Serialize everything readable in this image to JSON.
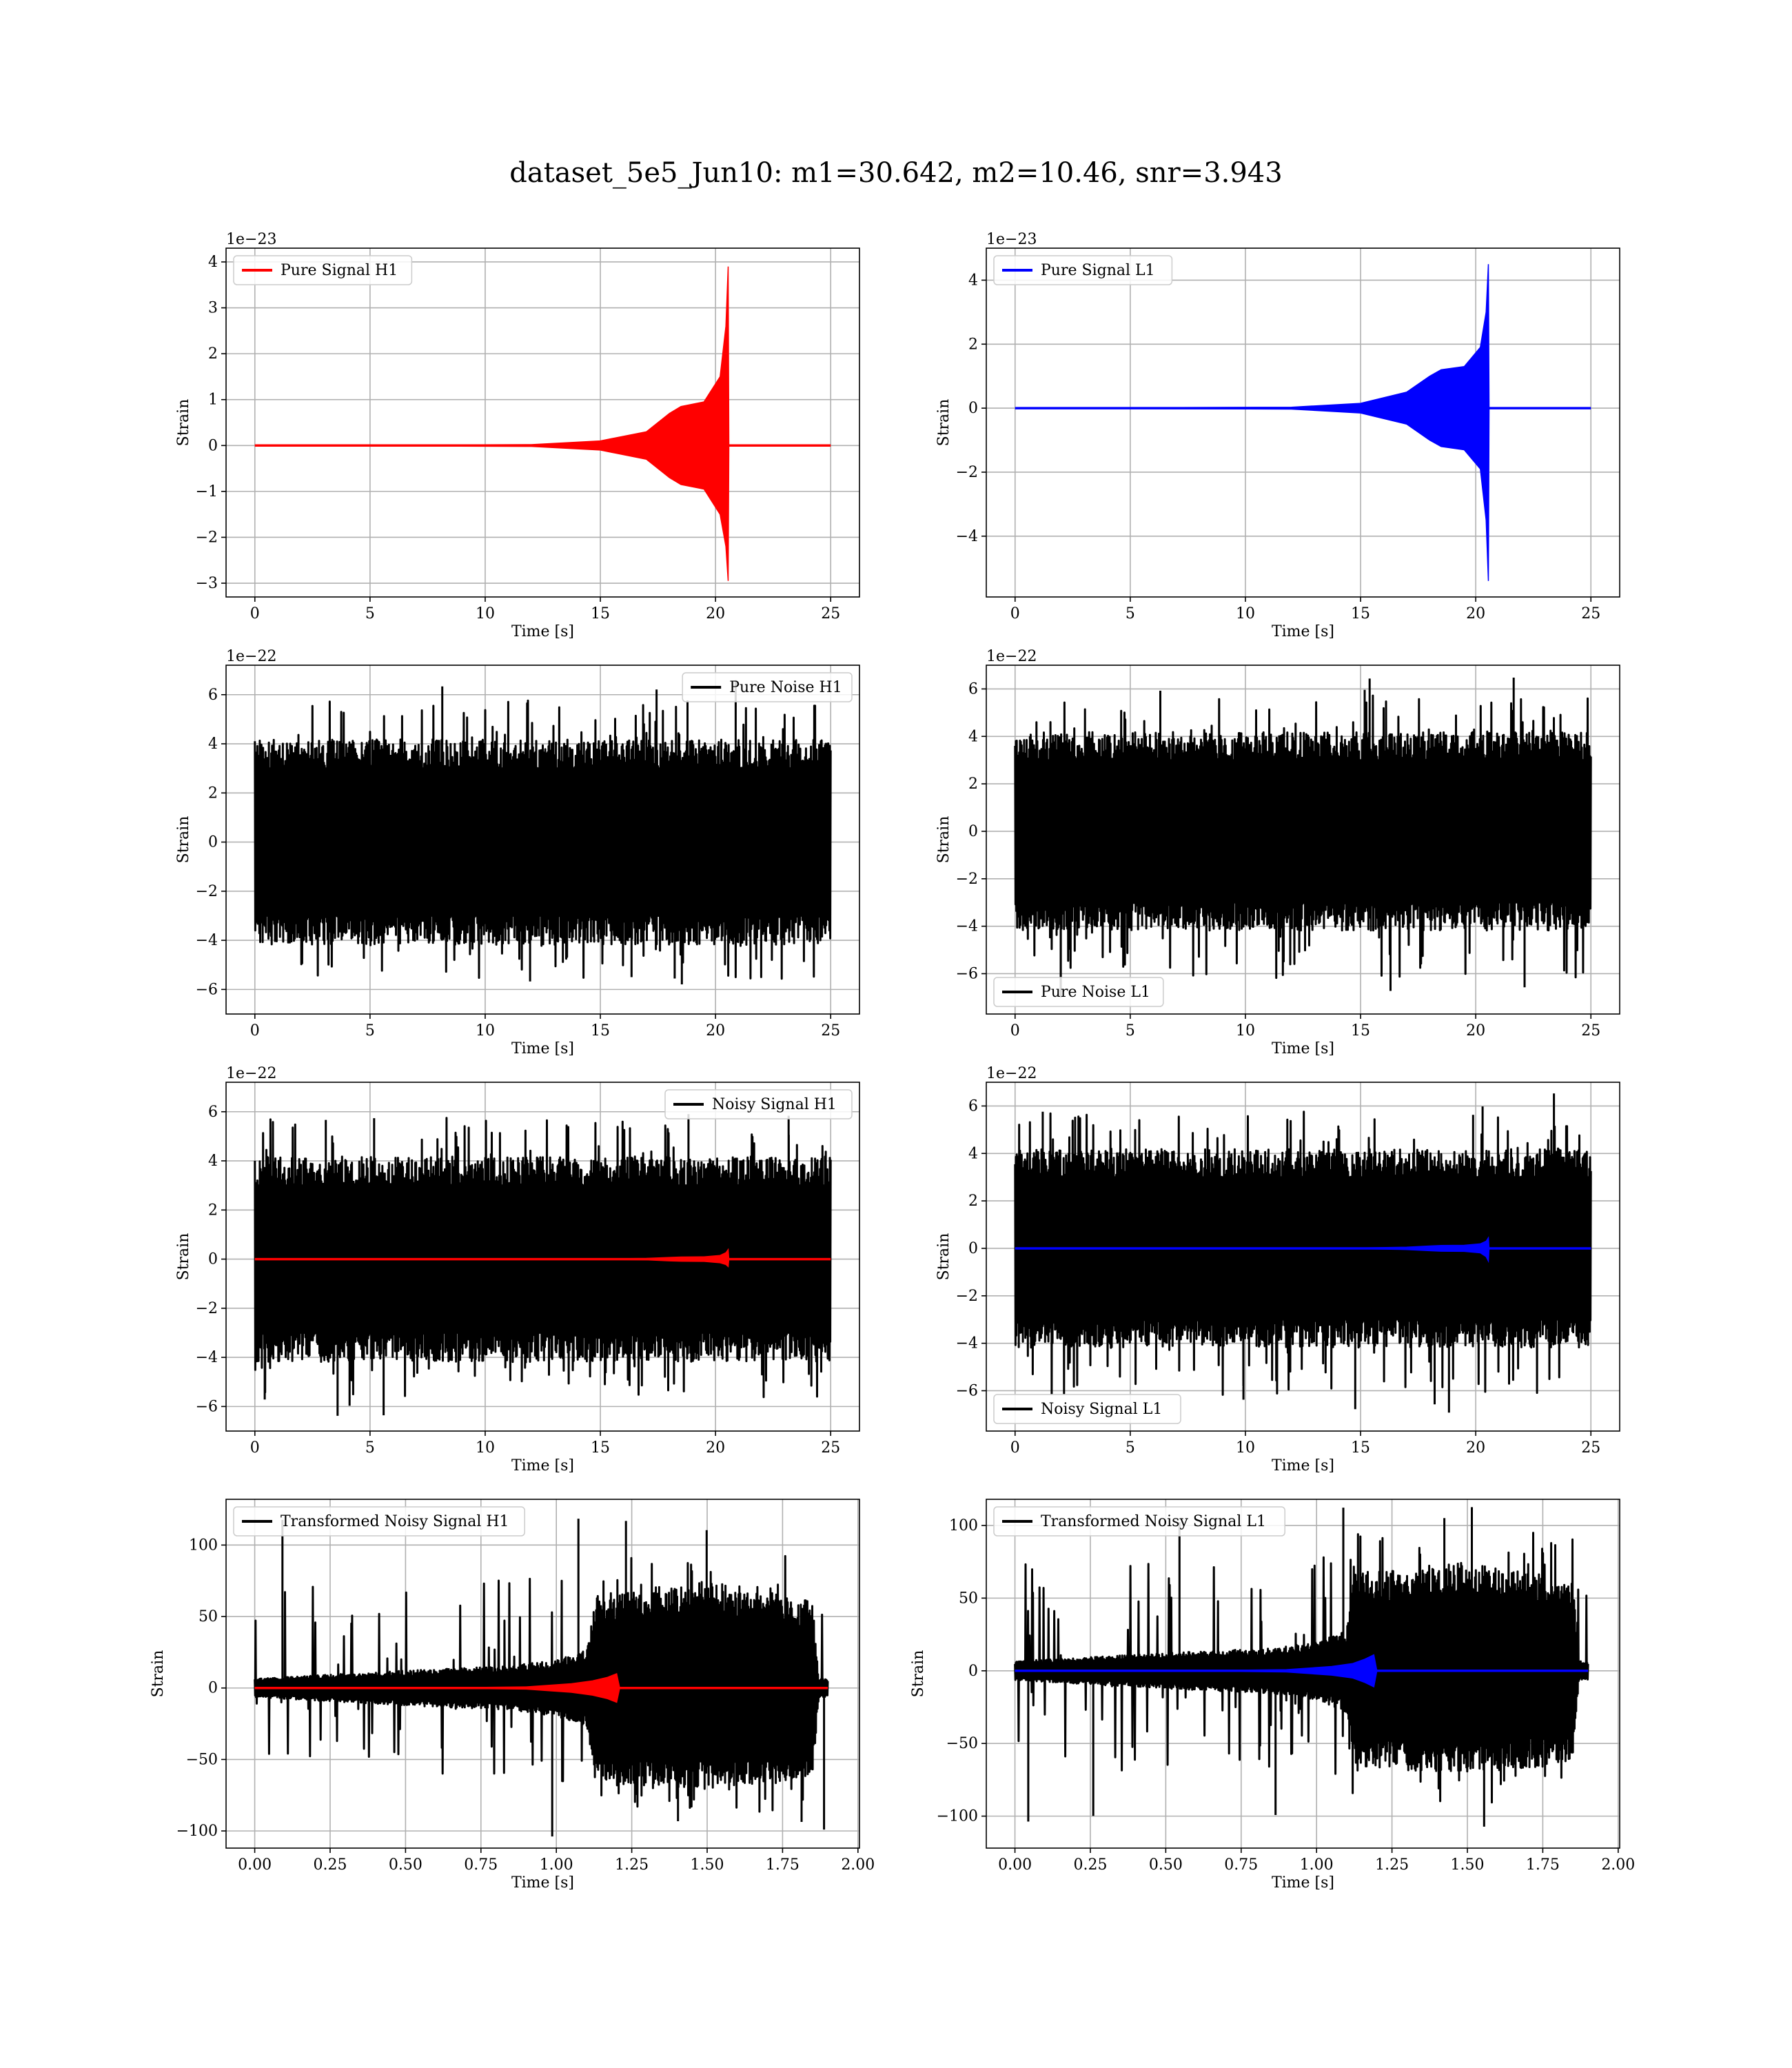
{
  "figure": {
    "title": "dataset_5e5_Jun10: m1=30.642, m2=10.46, snr=3.943"
  },
  "chart_data": [
    {
      "id": "pure-signal-h1",
      "type": "line",
      "kind": "chirp",
      "xlabel": "Time [s]",
      "ylabel": "Strain",
      "offset_text": "1e−23",
      "xlim": [
        -1.25,
        26.25
      ],
      "ylim": [
        -3.3,
        4.3
      ],
      "xticks": [
        0,
        5,
        10,
        15,
        20,
        25
      ],
      "xtick_labels": [
        "0",
        "5",
        "10",
        "15",
        "20",
        "25"
      ],
      "yticks": [
        -3,
        -2,
        -1,
        0,
        1,
        2,
        3,
        4
      ],
      "ytick_labels": [
        "−3",
        "−2",
        "−1",
        "0",
        "1",
        "2",
        "3",
        "4"
      ],
      "grid": true,
      "legend": "upper left",
      "series": [
        {
          "name": "Pure Signal H1",
          "color": "#ff0000",
          "x": [
            0,
            12,
            15,
            17,
            18,
            18.5,
            19.5,
            20.2,
            20.45,
            20.55,
            20.58,
            25
          ],
          "upper": [
            0,
            0.02,
            0.1,
            0.3,
            0.7,
            0.85,
            0.95,
            1.5,
            2.6,
            3.9,
            0,
            0
          ],
          "lower": [
            0,
            -0.02,
            -0.1,
            -0.3,
            -0.7,
            -0.85,
            -0.95,
            -1.5,
            -2.2,
            -2.95,
            0,
            0
          ]
        }
      ]
    },
    {
      "id": "pure-signal-l1",
      "type": "line",
      "kind": "chirp",
      "xlabel": "Time [s]",
      "ylabel": "Strain",
      "offset_text": "1e−23",
      "xlim": [
        -1.25,
        26.25
      ],
      "ylim": [
        -5.9,
        5.0
      ],
      "xticks": [
        0,
        5,
        10,
        15,
        20,
        25
      ],
      "xtick_labels": [
        "0",
        "5",
        "10",
        "15",
        "20",
        "25"
      ],
      "yticks": [
        -4,
        -2,
        0,
        2,
        4
      ],
      "ytick_labels": [
        "−4",
        "−2",
        "0",
        "2",
        "4"
      ],
      "grid": true,
      "legend": "upper left",
      "series": [
        {
          "name": "Pure Signal L1",
          "color": "#0000ff",
          "x": [
            0,
            12,
            15,
            17,
            18,
            18.5,
            19.5,
            20.2,
            20.45,
            20.55,
            20.58,
            25
          ],
          "upper": [
            0,
            0.03,
            0.15,
            0.5,
            1.0,
            1.2,
            1.3,
            1.9,
            3.0,
            4.5,
            0,
            0
          ],
          "lower": [
            0,
            -0.03,
            -0.15,
            -0.5,
            -1.0,
            -1.2,
            -1.3,
            -1.9,
            -3.5,
            -5.4,
            0,
            0
          ]
        }
      ]
    },
    {
      "id": "pure-noise-h1",
      "type": "line",
      "kind": "noise",
      "xlabel": "Time [s]",
      "ylabel": "Strain",
      "offset_text": "1e−22",
      "xlim": [
        -1.25,
        26.25
      ],
      "ylim": [
        -7.0,
        7.2
      ],
      "xticks": [
        0,
        5,
        10,
        15,
        20,
        25
      ],
      "xtick_labels": [
        "0",
        "5",
        "10",
        "15",
        "20",
        "25"
      ],
      "yticks": [
        -6,
        -4,
        -2,
        0,
        2,
        4,
        6
      ],
      "ytick_labels": [
        "−6",
        "−4",
        "−2",
        "0",
        "2",
        "4",
        "6"
      ],
      "grid": true,
      "legend": "upper right",
      "noise_range": [
        0,
        25
      ],
      "noise_band": 3.8,
      "noise_peak": 6.6,
      "noise_trough": -6.4,
      "series": [
        {
          "name": "Pure Noise H1",
          "color": "#000000"
        }
      ]
    },
    {
      "id": "pure-noise-l1",
      "type": "line",
      "kind": "noise",
      "xlabel": "Time [s]",
      "ylabel": "Strain",
      "offset_text": "1e−22",
      "xlim": [
        -1.25,
        26.25
      ],
      "ylim": [
        -7.7,
        7.0
      ],
      "xticks": [
        0,
        5,
        10,
        15,
        20,
        25
      ],
      "xtick_labels": [
        "0",
        "5",
        "10",
        "15",
        "20",
        "25"
      ],
      "yticks": [
        -6,
        -4,
        -2,
        0,
        2,
        4,
        6
      ],
      "ytick_labels": [
        "−6",
        "−4",
        "−2",
        "0",
        "2",
        "4",
        "6"
      ],
      "grid": true,
      "legend": "lower left",
      "noise_range": [
        0,
        25
      ],
      "noise_band": 3.8,
      "noise_peak": 6.6,
      "noise_trough": -7.2,
      "series": [
        {
          "name": "Pure Noise L1",
          "color": "#000000"
        }
      ]
    },
    {
      "id": "noisy-signal-h1",
      "type": "line",
      "kind": "noise+chirp",
      "xlabel": "Time [s]",
      "ylabel": "Strain",
      "offset_text": "1e−22",
      "xlim": [
        -1.25,
        26.25
      ],
      "ylim": [
        -7.0,
        7.2
      ],
      "xticks": [
        0,
        5,
        10,
        15,
        20,
        25
      ],
      "xtick_labels": [
        "0",
        "5",
        "10",
        "15",
        "20",
        "25"
      ],
      "yticks": [
        -6,
        -4,
        -2,
        0,
        2,
        4,
        6
      ],
      "ytick_labels": [
        "−6",
        "−4",
        "−2",
        "0",
        "2",
        "4",
        "6"
      ],
      "grid": true,
      "legend": "upper right",
      "noise_range": [
        0,
        25
      ],
      "noise_band": 3.8,
      "noise_peak": 6.6,
      "noise_trough": -6.4,
      "series": [
        {
          "name": "Noisy Signal H1",
          "color": "#000000"
        },
        {
          "color": "#ff0000",
          "x": [
            0,
            12,
            15,
            17,
            18,
            18.5,
            19.5,
            20.2,
            20.45,
            20.55,
            20.58,
            25
          ],
          "upper": [
            0,
            0.002,
            0.01,
            0.03,
            0.07,
            0.085,
            0.095,
            0.15,
            0.26,
            0.39,
            0,
            0
          ],
          "lower": [
            0,
            -0.002,
            -0.01,
            -0.03,
            -0.07,
            -0.085,
            -0.095,
            -0.15,
            -0.22,
            -0.3,
            0,
            0
          ]
        }
      ]
    },
    {
      "id": "noisy-signal-l1",
      "type": "line",
      "kind": "noise+chirp",
      "xlabel": "Time [s]",
      "ylabel": "Strain",
      "offset_text": "1e−22",
      "xlim": [
        -1.25,
        26.25
      ],
      "ylim": [
        -7.7,
        7.0
      ],
      "xticks": [
        0,
        5,
        10,
        15,
        20,
        25
      ],
      "xtick_labels": [
        "0",
        "5",
        "10",
        "15",
        "20",
        "25"
      ],
      "yticks": [
        -6,
        -4,
        -2,
        0,
        2,
        4,
        6
      ],
      "ytick_labels": [
        "−6",
        "−4",
        "−2",
        "0",
        "2",
        "4",
        "6"
      ],
      "grid": true,
      "legend": "lower left",
      "noise_range": [
        0,
        25
      ],
      "noise_band": 3.8,
      "noise_peak": 6.6,
      "noise_trough": -7.2,
      "series": [
        {
          "name": "Noisy Signal L1",
          "color": "#000000"
        },
        {
          "color": "#0000ff",
          "x": [
            0,
            12,
            15,
            17,
            18,
            18.5,
            19.5,
            20.2,
            20.45,
            20.55,
            20.58,
            25
          ],
          "upper": [
            0,
            0.003,
            0.015,
            0.05,
            0.1,
            0.12,
            0.13,
            0.19,
            0.3,
            0.45,
            0,
            0
          ],
          "lower": [
            0,
            -0.003,
            -0.015,
            -0.05,
            -0.1,
            -0.12,
            -0.13,
            -0.19,
            -0.35,
            -0.54,
            0,
            0
          ]
        }
      ]
    },
    {
      "id": "transformed-noisy-signal-h1",
      "type": "line",
      "kind": "transformed",
      "xlabel": "Time [s]",
      "ylabel": "Strain",
      "offset_text": "",
      "xlim": [
        -0.095,
        2.005
      ],
      "ylim": [
        -112,
        132
      ],
      "xticks": [
        0,
        0.25,
        0.5,
        0.75,
        1.0,
        1.25,
        1.5,
        1.75,
        2.0
      ],
      "xtick_labels": [
        "0.00",
        "0.25",
        "0.50",
        "0.75",
        "1.00",
        "1.25",
        "1.50",
        "1.75",
        "2.00"
      ],
      "yticks": [
        -100,
        -50,
        0,
        50,
        100
      ],
      "ytick_labels": [
        "−100",
        "−50",
        "0",
        "50",
        "100"
      ],
      "grid": true,
      "legend": "upper left",
      "noise_range": [
        0,
        1.9
      ],
      "envelope_x": [
        0,
        0.02,
        0.3,
        0.6,
        0.85,
        1.0,
        1.1,
        1.13,
        1.16,
        1.5,
        1.75,
        1.85,
        1.87,
        1.9
      ],
      "envelope_up": [
        6,
        6,
        9,
        12,
        14,
        18,
        24,
        60,
        60,
        68,
        60,
        55,
        6,
        6
      ],
      "envelope_lo": [
        -6,
        -6,
        -9,
        -12,
        -14,
        -18,
        -24,
        -55,
        -60,
        -65,
        -60,
        -55,
        -6,
        -6
      ],
      "noise_peak": 120,
      "noise_trough": -105,
      "series": [
        {
          "name": "Transformed Noisy Signal H1",
          "color": "#000000"
        },
        {
          "color": "#ff0000",
          "x": [
            0,
            0.6,
            0.9,
            1.05,
            1.12,
            1.17,
            1.2,
            1.21,
            1.9
          ],
          "upper": [
            0,
            0.1,
            0.8,
            3.0,
            5.0,
            7.5,
            10,
            0,
            0
          ],
          "lower": [
            0,
            -0.1,
            -0.8,
            -3.0,
            -5.0,
            -7.5,
            -10,
            0,
            0
          ]
        }
      ]
    },
    {
      "id": "transformed-noisy-signal-l1",
      "type": "line",
      "kind": "transformed",
      "xlabel": "Time [s]",
      "ylabel": "Strain",
      "offset_text": "",
      "xlim": [
        -0.095,
        2.005
      ],
      "ylim": [
        -122,
        118
      ],
      "xticks": [
        0,
        0.25,
        0.5,
        0.75,
        1.0,
        1.25,
        1.5,
        1.75,
        2.0
      ],
      "xtick_labels": [
        "0.00",
        "0.25",
        "0.50",
        "0.75",
        "1.00",
        "1.25",
        "1.50",
        "1.75",
        "2.00"
      ],
      "yticks": [
        -100,
        -50,
        0,
        50,
        100
      ],
      "ytick_labels": [
        "−100",
        "−50",
        "0",
        "50",
        "100"
      ],
      "grid": true,
      "legend": "upper left",
      "noise_range": [
        0,
        1.9
      ],
      "envelope_x": [
        0,
        0.02,
        0.3,
        0.6,
        0.85,
        1.0,
        1.1,
        1.12,
        1.15,
        1.5,
        1.75,
        1.85,
        1.87,
        1.9
      ],
      "envelope_up": [
        6,
        6,
        9,
        12,
        14,
        18,
        26,
        60,
        62,
        68,
        60,
        55,
        6,
        6
      ],
      "envelope_lo": [
        -6,
        -6,
        -9,
        -12,
        -14,
        -18,
        -26,
        -55,
        -60,
        -65,
        -60,
        -55,
        -6,
        -6
      ],
      "noise_peak": 118,
      "noise_trough": -110,
      "series": [
        {
          "name": "Transformed Noisy Signal L1",
          "color": "#000000"
        },
        {
          "color": "#0000ff",
          "x": [
            0,
            0.6,
            0.9,
            1.05,
            1.12,
            1.16,
            1.19,
            1.2,
            1.9
          ],
          "upper": [
            0,
            0.1,
            0.8,
            3.0,
            5.0,
            8,
            11,
            0,
            0
          ],
          "lower": [
            0,
            -0.1,
            -0.8,
            -3.0,
            -5.0,
            -8,
            -11,
            0,
            0
          ]
        }
      ]
    }
  ]
}
